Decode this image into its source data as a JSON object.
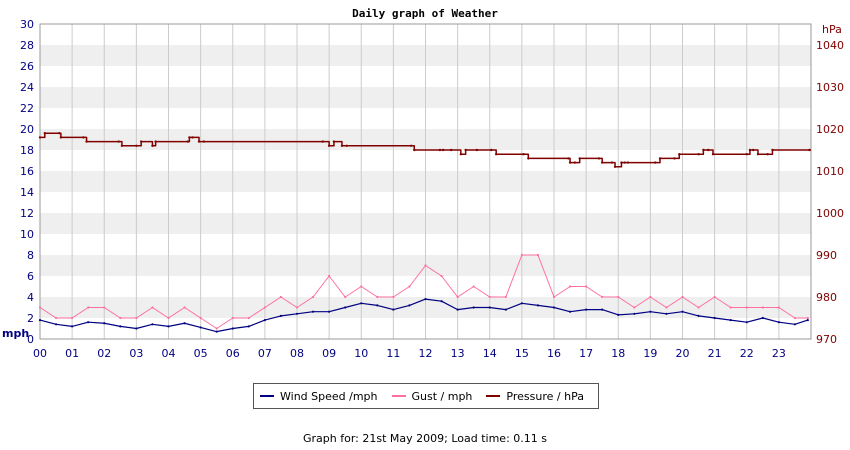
{
  "chart_data": {
    "type": "line",
    "title": "Daily graph of Weather",
    "y_left_unit": "mph",
    "y_right_unit": "hPa",
    "ylim_left": [
      0,
      30
    ],
    "ylim_right": [
      970,
      1045
    ],
    "y_left_ticks": [
      "0",
      "2",
      "4",
      "6",
      "8",
      "10",
      "12",
      "14",
      "16",
      "18",
      "20",
      "22",
      "24",
      "26",
      "28",
      "30"
    ],
    "y_right_ticks": [
      "970",
      "980",
      "990",
      "1000",
      "1010",
      "1020",
      "1030",
      "1040"
    ],
    "x_ticks": [
      "00",
      "01",
      "02",
      "03",
      "04",
      "05",
      "06",
      "07",
      "08",
      "09",
      "10",
      "11",
      "12",
      "13",
      "14",
      "15",
      "16",
      "17",
      "18",
      "19",
      "20",
      "21",
      "22",
      "23"
    ],
    "xlim_hours": [
      0,
      24
    ],
    "grid": true,
    "colors": {
      "wind": "#000080",
      "gust": "#ff6f9f",
      "pressure": "#800000",
      "left_axis": "#000080",
      "right_axis": "#800000",
      "band": "#efefef"
    },
    "series": [
      {
        "name": "Wind Speed /mph",
        "x": [
          0,
          0.5,
          1,
          1.5,
          2,
          2.5,
          3,
          3.5,
          4,
          4.5,
          5,
          5.5,
          6,
          6.5,
          7,
          7.5,
          8,
          8.5,
          9,
          9.5,
          10,
          10.5,
          11,
          11.5,
          12,
          12.5,
          13,
          13.5,
          14,
          14.5,
          15,
          15.5,
          16,
          16.5,
          17,
          17.5,
          18,
          18.5,
          19,
          19.5,
          20,
          20.5,
          21,
          21.5,
          22,
          22.5,
          23,
          23.5,
          23.9
        ],
        "values": [
          1.8,
          1.4,
          1.2,
          1.6,
          1.5,
          1.2,
          1.0,
          1.4,
          1.2,
          1.5,
          1.1,
          0.7,
          1.0,
          1.2,
          1.8,
          2.2,
          2.4,
          2.6,
          2.6,
          3.0,
          3.4,
          3.2,
          2.8,
          3.2,
          3.8,
          3.6,
          2.8,
          3.0,
          3.0,
          2.8,
          3.4,
          3.2,
          3.0,
          2.6,
          2.8,
          2.8,
          2.3,
          2.4,
          2.6,
          2.4,
          2.6,
          2.2,
          2.0,
          1.8,
          1.6,
          2.0,
          1.6,
          1.4,
          1.8
        ]
      },
      {
        "name": "Gust / mph",
        "x": [
          0,
          0.5,
          1,
          1.5,
          2,
          2.5,
          3,
          3.5,
          4,
          4.5,
          5,
          5.5,
          6,
          6.5,
          7,
          7.5,
          8,
          8.5,
          9,
          9.5,
          10,
          10.5,
          11,
          11.5,
          12,
          12.5,
          13,
          13.5,
          14,
          14.5,
          15,
          15.5,
          16,
          16.5,
          17,
          17.5,
          18,
          18.5,
          19,
          19.5,
          20,
          20.5,
          21,
          21.5,
          22,
          22.5,
          23,
          23.5,
          23.9
        ],
        "values": [
          3,
          2,
          2,
          3,
          3,
          2,
          2,
          3,
          2,
          3,
          2,
          1,
          2,
          2,
          3,
          4,
          3,
          4,
          6,
          4,
          5,
          4,
          4,
          5,
          7,
          6,
          4,
          5,
          4,
          4,
          8,
          8,
          4,
          5,
          5,
          4,
          4,
          3,
          4,
          3,
          4,
          3,
          4,
          3,
          3,
          3,
          3,
          2,
          2
        ]
      },
      {
        "name": "Pressure / hPa",
        "axis": "right",
        "x": [
          0,
          0.15,
          0.6,
          0.65,
          1.35,
          1.45,
          2.45,
          2.55,
          3.0,
          3.15,
          3.5,
          3.6,
          4.6,
          4.65,
          4.75,
          4.95,
          5.1,
          8.8,
          9.0,
          9.15,
          9.4,
          9.55,
          11.55,
          11.65,
          12.45,
          12.55,
          12.8,
          13.1,
          13.25,
          13.6,
          14.05,
          14.2,
          15.05,
          15.2,
          16.45,
          16.5,
          16.65,
          16.8,
          17.4,
          17.5,
          17.8,
          17.9,
          18.1,
          18.2,
          18.3,
          19.15,
          19.3,
          19.75,
          19.9,
          20.5,
          20.65,
          20.8,
          20.95,
          22.0,
          22.1,
          22.2,
          22.35,
          22.65,
          22.8,
          23.95
        ],
        "values": [
          1018,
          1019,
          1019,
          1018,
          1018,
          1017,
          1017,
          1016,
          1016,
          1017,
          1016,
          1017,
          1017,
          1018,
          1018,
          1017,
          1017,
          1017,
          1016,
          1017,
          1016,
          1016,
          1016,
          1015,
          1015,
          1015,
          1015,
          1014,
          1015,
          1015,
          1015,
          1014,
          1014,
          1013,
          1013,
          1012,
          1012,
          1013,
          1013,
          1012,
          1012,
          1011,
          1012,
          1012,
          1012,
          1012,
          1013,
          1013,
          1014,
          1014,
          1015,
          1015,
          1014,
          1014,
          1015,
          1015,
          1014,
          1014,
          1015,
          1015
        ]
      }
    ]
  },
  "legend": {
    "wind": "Wind Speed /mph",
    "gust": "Gust / mph",
    "pressure": "Pressure / hPa"
  },
  "footer": "Graph for: 21st May 2009; Load time: 0.11 s"
}
